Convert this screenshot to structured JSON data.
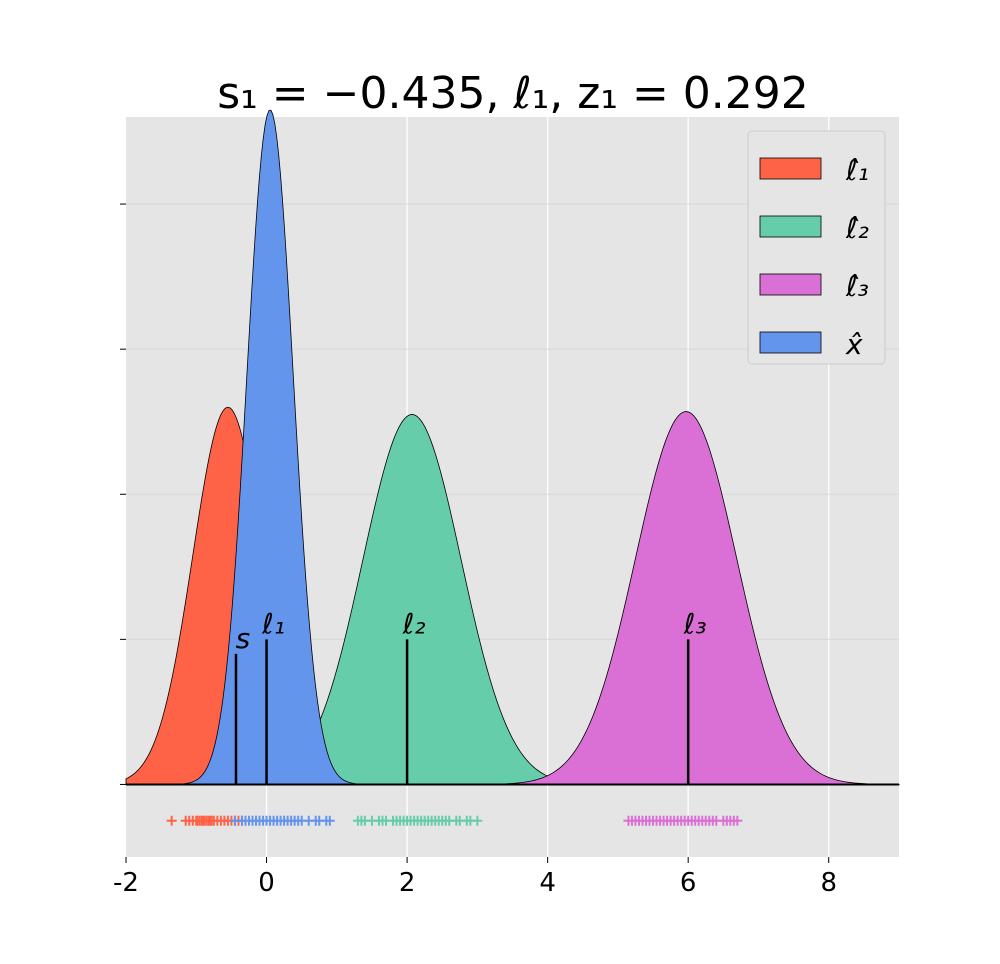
{
  "chart_data": {
    "type": "area",
    "title": "s₁ = −0.435, ℓ₁, z₁ = 0.292",
    "xlabel": "",
    "ylabel": "",
    "xlim": [
      -2,
      9
    ],
    "ylim": [
      -0.5,
      4.6
    ],
    "x_ticks": [
      -2,
      0,
      2,
      4,
      6,
      8
    ],
    "x_tick_labels": [
      "-2",
      "0",
      "2",
      "4",
      "6",
      "8"
    ],
    "y_ticks": [
      1,
      2,
      3,
      4
    ],
    "grid": true,
    "legend_position": "top-right",
    "series": [
      {
        "name": "ℓ̂₁",
        "color": "#ff6347",
        "mean": -0.55,
        "sd": 0.5,
        "peak": 2.6
      },
      {
        "name": "ℓ̂₂",
        "color": "#66cdaa",
        "mean": 2.07,
        "sd": 0.7,
        "peak": 2.55
      },
      {
        "name": "ℓ̂₃",
        "color": "#da70d6",
        "mean": 5.97,
        "sd": 0.72,
        "peak": 2.57
      },
      {
        "name": "x̂",
        "color": "#6495ed",
        "mean": 0.05,
        "sd": 0.33,
        "peak": 4.65
      }
    ],
    "draw_order": [
      0,
      1,
      2,
      3
    ],
    "markers": [
      {
        "label": "s",
        "x": -0.435,
        "height": 0.9
      },
      {
        "label": "ℓ₁",
        "x": 0,
        "height": 1.0
      },
      {
        "label": "ℓ₂",
        "x": 2,
        "height": 1.0
      },
      {
        "label": "ℓ₃",
        "x": 6,
        "height": 1.0
      }
    ],
    "rug": [
      {
        "series": 0,
        "y": -0.25,
        "values": [
          -1.35,
          -1.15,
          -1.1,
          -1.05,
          -1.0,
          -0.98,
          -0.95,
          -0.92,
          -0.9,
          -0.88,
          -0.85,
          -0.82,
          -0.8,
          -0.78,
          -0.75,
          -0.7,
          -0.65,
          -0.6,
          -0.55,
          -0.5,
          -0.45,
          -0.4,
          -0.35
        ]
      },
      {
        "series": 3,
        "y": -0.25,
        "values": [
          -0.45,
          -0.35,
          -0.3,
          -0.25,
          -0.2,
          -0.15,
          -0.1,
          -0.05,
          0.0,
          0.05,
          0.1,
          0.15,
          0.2,
          0.25,
          0.3,
          0.35,
          0.4,
          0.45,
          0.5,
          0.6,
          0.7,
          0.75,
          0.85,
          0.9
        ]
      },
      {
        "series": 1,
        "y": -0.25,
        "values": [
          1.3,
          1.35,
          1.4,
          1.5,
          1.6,
          1.65,
          1.7,
          1.8,
          1.85,
          1.9,
          1.95,
          2.0,
          2.05,
          2.1,
          2.15,
          2.2,
          2.25,
          2.3,
          2.35,
          2.4,
          2.45,
          2.5,
          2.55,
          2.6,
          2.7,
          2.75,
          2.85,
          2.9,
          3.0
        ]
      },
      {
        "series": 2,
        "y": -0.25,
        "values": [
          5.15,
          5.2,
          5.25,
          5.3,
          5.35,
          5.4,
          5.45,
          5.5,
          5.55,
          5.6,
          5.65,
          5.7,
          5.75,
          5.8,
          5.85,
          5.9,
          5.95,
          6.0,
          6.05,
          6.1,
          6.15,
          6.2,
          6.25,
          6.3,
          6.35,
          6.4,
          6.5,
          6.55,
          6.6,
          6.65,
          6.7
        ]
      }
    ]
  }
}
